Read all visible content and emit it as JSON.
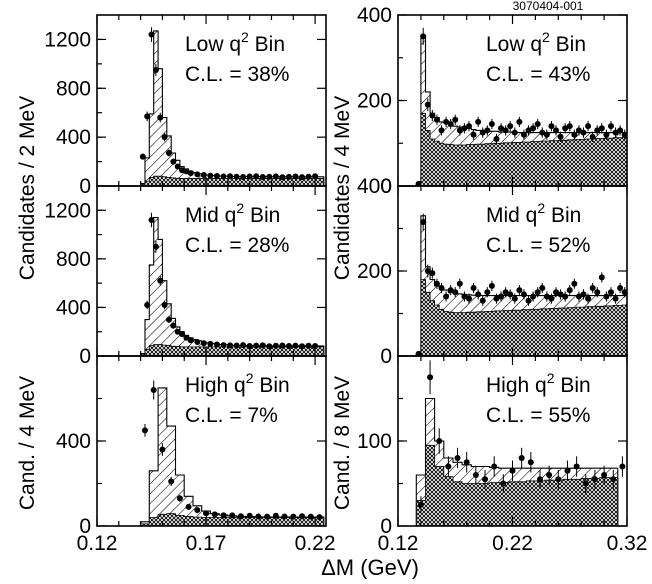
{
  "figure_id": "3070404-001",
  "x_axis_label": "ΔM (GeV)",
  "y_labels": {
    "left_top": "Candidates / 2 MeV",
    "left_bottom": "Cand. / 4 MeV",
    "right_top": "Candidates / 4 MeV",
    "right_bottom": "Cand. / 8 MeV"
  },
  "chart_data": [
    {
      "type": "bar",
      "panel": "left-top",
      "bin_label": "Low q² Bin",
      "cl": "C.L. = 38%",
      "xlim": [
        0.12,
        0.225
      ],
      "ylim": [
        0,
        1400
      ],
      "xticks": [],
      "yticks": [
        0,
        400,
        800,
        1200
      ],
      "bin_width": 0.002,
      "x_start": 0.14,
      "total": [
        20,
        230,
        590,
        1270,
        960,
        560,
        410,
        270,
        210,
        160,
        140,
        120,
        110,
        100,
        95,
        90,
        86,
        84,
        82,
        80,
        79,
        78,
        78,
        77,
        77,
        76,
        76,
        76,
        76,
        76,
        76,
        76,
        76,
        76,
        75,
        75,
        75,
        75,
        75,
        75,
        75,
        75
      ],
      "background": [
        10,
        40,
        70,
        80,
        80,
        75,
        70,
        66,
        63,
        62,
        62,
        62,
        62,
        62,
        62,
        62,
        62,
        62,
        62,
        62,
        62,
        62,
        62,
        62,
        62,
        62,
        62,
        62,
        62,
        62,
        62,
        62,
        62,
        62,
        62,
        62,
        62,
        62,
        62,
        62,
        62,
        62
      ],
      "points_x": [
        0.141,
        0.143,
        0.145,
        0.147,
        0.149,
        0.151,
        0.153,
        0.155,
        0.157,
        0.159,
        0.161,
        0.163,
        0.166,
        0.169,
        0.172,
        0.175,
        0.178,
        0.181,
        0.184,
        0.187,
        0.19,
        0.193,
        0.196,
        0.199,
        0.202,
        0.205,
        0.208,
        0.211,
        0.214,
        0.217,
        0.22
      ],
      "points_y": [
        240,
        570,
        1240,
        950,
        560,
        400,
        270,
        200,
        160,
        130,
        120,
        105,
        95,
        90,
        85,
        82,
        78,
        80,
        76,
        74,
        78,
        80,
        74,
        76,
        79,
        72,
        75,
        78,
        73,
        76,
        80
      ],
      "errors": [
        25,
        40,
        60,
        50,
        40,
        35,
        28,
        25,
        20,
        18,
        16,
        15,
        14,
        14,
        13,
        13,
        12,
        12,
        12,
        12,
        12,
        12,
        12,
        12,
        12,
        12,
        12,
        12,
        12,
        12,
        12
      ]
    },
    {
      "type": "bar",
      "panel": "left-mid",
      "bin_label": "Mid q² Bin",
      "cl": "C.L. = 28%",
      "xlim": [
        0.12,
        0.225
      ],
      "ylim": [
        0,
        1400
      ],
      "xticks": [],
      "yticks": [
        0,
        400,
        800,
        1200
      ],
      "bin_width": 0.002,
      "x_start": 0.14,
      "total": [
        20,
        300,
        750,
        1140,
        960,
        620,
        430,
        310,
        240,
        200,
        170,
        150,
        135,
        125,
        115,
        108,
        102,
        98,
        95,
        92,
        90,
        88,
        87,
        86,
        85,
        85,
        84,
        84,
        84,
        84,
        83,
        83,
        83,
        83,
        83,
        83,
        83,
        83,
        83,
        83,
        83,
        83
      ],
      "background": [
        10,
        55,
        85,
        95,
        95,
        90,
        85,
        80,
        78,
        76,
        75,
        75,
        75,
        75,
        75,
        75,
        75,
        75,
        75,
        75,
        75,
        75,
        75,
        75,
        75,
        75,
        75,
        75,
        75,
        75,
        75,
        75,
        75,
        75,
        75,
        75,
        75,
        75,
        75,
        75,
        75,
        75
      ],
      "points_x": [
        0.143,
        0.145,
        0.147,
        0.149,
        0.151,
        0.153,
        0.155,
        0.157,
        0.159,
        0.161,
        0.163,
        0.166,
        0.169,
        0.172,
        0.175,
        0.178,
        0.181,
        0.184,
        0.187,
        0.19,
        0.193,
        0.196,
        0.199,
        0.202,
        0.205,
        0.208,
        0.211,
        0.214,
        0.217,
        0.22
      ],
      "points_y": [
        420,
        1120,
        900,
        620,
        420,
        300,
        250,
        200,
        180,
        150,
        130,
        115,
        105,
        100,
        95,
        90,
        88,
        86,
        90,
        82,
        85,
        88,
        80,
        84,
        86,
        82,
        85,
        80,
        84,
        82
      ],
      "errors": [
        35,
        60,
        50,
        40,
        35,
        28,
        25,
        22,
        20,
        18,
        16,
        15,
        14,
        14,
        13,
        13,
        12,
        12,
        12,
        12,
        12,
        12,
        12,
        12,
        12,
        12,
        12,
        12,
        12,
        12
      ]
    },
    {
      "type": "bar",
      "panel": "left-bottom",
      "bin_label": "High q² Bin",
      "cl": "C.L. = 7%",
      "xlim": [
        0.12,
        0.225
      ],
      "ylim": [
        0,
        800
      ],
      "xticks": [
        "0.12",
        "0.17",
        "0.22"
      ],
      "yticks": [
        0,
        400
      ],
      "bin_width": 0.004,
      "x_start": 0.14,
      "total": [
        20,
        260,
        650,
        470,
        240,
        140,
        95,
        70,
        58,
        52,
        48,
        45,
        44,
        43,
        42,
        42,
        42,
        42,
        42,
        42,
        42
      ],
      "background": [
        10,
        40,
        55,
        58,
        50,
        45,
        42,
        40,
        40,
        40,
        40,
        40,
        40,
        40,
        40,
        40,
        40,
        40,
        40,
        40,
        40
      ],
      "points_x": [
        0.142,
        0.146,
        0.15,
        0.154,
        0.158,
        0.162,
        0.166,
        0.17,
        0.174,
        0.178,
        0.182,
        0.186,
        0.19,
        0.194,
        0.198,
        0.202,
        0.206,
        0.21,
        0.214,
        0.218,
        0.222
      ],
      "points_y": [
        450,
        640,
        360,
        210,
        130,
        90,
        75,
        60,
        55,
        50,
        50,
        46,
        48,
        45,
        44,
        48,
        45,
        44,
        46,
        44,
        42
      ],
      "errors": [
        30,
        45,
        30,
        22,
        16,
        13,
        12,
        11,
        10,
        10,
        10,
        10,
        10,
        10,
        10,
        10,
        10,
        10,
        10,
        10,
        10
      ]
    },
    {
      "type": "bar",
      "panel": "right-top",
      "bin_label": "Low q² Bin",
      "cl": "C.L. = 43%",
      "xlim": [
        0.12,
        0.32
      ],
      "ylim": [
        0,
        400
      ],
      "xticks": [],
      "yticks": [
        0,
        200,
        400
      ],
      "bin_width": 0.004,
      "x_start": 0.136,
      "total": [
        5,
        350,
        220,
        170,
        160,
        150,
        148,
        145,
        140,
        138,
        135,
        135,
        132,
        130,
        130,
        128,
        128,
        128,
        126,
        126,
        126,
        125,
        125,
        125,
        125,
        125,
        125,
        125,
        125,
        125,
        125,
        125,
        125,
        125,
        125,
        125,
        125,
        125,
        125,
        125,
        125,
        125,
        125,
        125,
        125,
        125
      ],
      "background": [
        2,
        170,
        130,
        110,
        105,
        100,
        98,
        97,
        96,
        96,
        96,
        97,
        97,
        98,
        98,
        99,
        99,
        100,
        100,
        101,
        101,
        102,
        102,
        103,
        103,
        104,
        104,
        105,
        105,
        106,
        106,
        107,
        107,
        108,
        108,
        109,
        109,
        110,
        110,
        111,
        111,
        112,
        112,
        113,
        113,
        114
      ],
      "points_x": [
        0.138,
        0.142,
        0.146,
        0.15,
        0.154,
        0.158,
        0.162,
        0.166,
        0.17,
        0.174,
        0.178,
        0.182,
        0.186,
        0.19,
        0.194,
        0.198,
        0.202,
        0.206,
        0.21,
        0.214,
        0.218,
        0.222,
        0.226,
        0.23,
        0.234,
        0.238,
        0.242,
        0.246,
        0.25,
        0.254,
        0.258,
        0.262,
        0.266,
        0.27,
        0.274,
        0.278,
        0.282,
        0.286,
        0.29,
        0.294,
        0.298,
        0.302,
        0.306,
        0.31,
        0.314,
        0.318
      ],
      "points_y": [
        5,
        350,
        190,
        165,
        155,
        130,
        150,
        145,
        155,
        130,
        135,
        140,
        120,
        150,
        125,
        130,
        145,
        110,
        135,
        130,
        140,
        125,
        150,
        120,
        130,
        135,
        145,
        125,
        120,
        140,
        130,
        115,
        135,
        140,
        120,
        130,
        125,
        140,
        115,
        130,
        135,
        120,
        140,
        125,
        130,
        120
      ],
      "errors": [
        5,
        20,
        15,
        13,
        12,
        12,
        12,
        12,
        12,
        12,
        12,
        12,
        12,
        12,
        12,
        12,
        12,
        12,
        12,
        12,
        12,
        12,
        12,
        12,
        12,
        12,
        12,
        12,
        12,
        12,
        12,
        12,
        12,
        12,
        12,
        12,
        12,
        12,
        12,
        12,
        12,
        12,
        12,
        12,
        12,
        12
      ]
    },
    {
      "type": "bar",
      "panel": "right-mid",
      "bin_label": "Mid q² Bin",
      "cl": "C.L. = 52%",
      "xlim": [
        0.12,
        0.32
      ],
      "ylim": [
        0,
        400
      ],
      "xticks": [],
      "yticks": [
        0,
        200,
        400
      ],
      "bin_width": 0.004,
      "x_start": 0.136,
      "total": [
        5,
        330,
        210,
        180,
        165,
        160,
        155,
        150,
        148,
        146,
        145,
        144,
        143,
        142,
        142,
        142,
        142,
        142,
        142,
        142,
        142,
        142,
        142,
        142,
        142,
        142,
        142,
        142,
        142,
        142,
        142,
        142,
        142,
        142,
        142,
        142,
        142,
        142,
        142,
        142,
        142,
        142,
        142,
        142,
        142,
        142
      ],
      "background": [
        2,
        180,
        150,
        130,
        120,
        110,
        105,
        103,
        102,
        102,
        102,
        103,
        103,
        104,
        104,
        105,
        105,
        106,
        106,
        107,
        107,
        108,
        108,
        109,
        109,
        110,
        110,
        111,
        111,
        112,
        112,
        113,
        113,
        114,
        114,
        115,
        115,
        116,
        116,
        117,
        117,
        118,
        118,
        119,
        119,
        120
      ],
      "points_x": [
        0.138,
        0.142,
        0.146,
        0.15,
        0.154,
        0.158,
        0.162,
        0.166,
        0.17,
        0.174,
        0.178,
        0.182,
        0.186,
        0.19,
        0.194,
        0.198,
        0.202,
        0.206,
        0.21,
        0.214,
        0.218,
        0.222,
        0.226,
        0.23,
        0.234,
        0.238,
        0.242,
        0.246,
        0.25,
        0.254,
        0.258,
        0.262,
        0.266,
        0.27,
        0.274,
        0.278,
        0.282,
        0.286,
        0.29,
        0.294,
        0.298,
        0.302,
        0.306,
        0.31,
        0.314,
        0.318
      ],
      "points_y": [
        5,
        315,
        200,
        195,
        170,
        160,
        140,
        155,
        150,
        170,
        140,
        135,
        160,
        145,
        130,
        150,
        165,
        135,
        140,
        150,
        145,
        135,
        155,
        145,
        130,
        140,
        150,
        160,
        140,
        135,
        150,
        145,
        140,
        155,
        170,
        140,
        145,
        135,
        160,
        150,
        185,
        140,
        150,
        135,
        160,
        150
      ],
      "errors": [
        5,
        20,
        15,
        13,
        12,
        12,
        12,
        12,
        12,
        12,
        12,
        12,
        12,
        12,
        12,
        12,
        12,
        12,
        12,
        12,
        12,
        12,
        12,
        12,
        12,
        12,
        12,
        12,
        12,
        12,
        12,
        12,
        12,
        12,
        12,
        12,
        12,
        12,
        12,
        12,
        12,
        12,
        12,
        12,
        12,
        12
      ]
    },
    {
      "type": "bar",
      "panel": "right-bottom",
      "bin_label": "High q² Bin",
      "cl": "C.L. = 55%",
      "xlim": [
        0.12,
        0.32
      ],
      "ylim": [
        0,
        200
      ],
      "xticks": [
        "0.12",
        "0.22",
        "0.32"
      ],
      "yticks": [
        0,
        100
      ],
      "bin_width": 0.008,
      "x_start": 0.136,
      "total": [
        60,
        150,
        100,
        80,
        75,
        72,
        70,
        70,
        69,
        68,
        68,
        68,
        68,
        68,
        68,
        68,
        68,
        68,
        68,
        68,
        68,
        68
      ],
      "background": [
        30,
        95,
        70,
        58,
        52,
        50,
        50,
        50,
        51,
        51,
        52,
        52,
        53,
        53,
        54,
        54,
        55,
        55,
        56,
        56,
        57,
        57
      ],
      "points_x": [
        0.14,
        0.148,
        0.156,
        0.164,
        0.172,
        0.18,
        0.188,
        0.196,
        0.204,
        0.212,
        0.22,
        0.228,
        0.236,
        0.244,
        0.252,
        0.26,
        0.268,
        0.276,
        0.284,
        0.292,
        0.3,
        0.308,
        0.316
      ],
      "points_y": [
        25,
        175,
        100,
        70,
        80,
        75,
        60,
        55,
        70,
        50,
        65,
        80,
        75,
        55,
        60,
        55,
        65,
        70,
        50,
        55,
        60,
        55,
        70
      ],
      "errors": [
        10,
        20,
        15,
        12,
        12,
        12,
        11,
        11,
        12,
        11,
        12,
        12,
        12,
        11,
        11,
        11,
        12,
        12,
        11,
        11,
        11,
        11,
        12
      ]
    }
  ]
}
